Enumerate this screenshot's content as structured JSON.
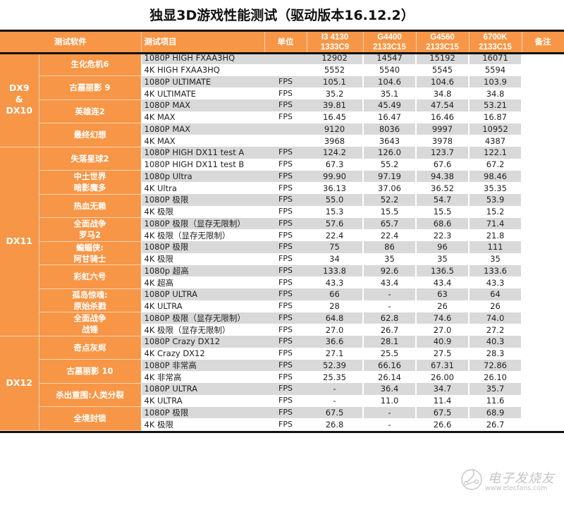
{
  "title": "独显3D游戏性能测试（驱动版本16.12.2）",
  "header": {
    "software": "测试软件",
    "test_item": "测试项目",
    "unit": "单位",
    "cpus": [
      {
        "line1": "I3 4130",
        "line2": "1333C9"
      },
      {
        "line1": "G4400",
        "line2": "2133C15"
      },
      {
        "line1": "G4560",
        "line2": "2133C15"
      },
      {
        "line1": "6700K",
        "line2": "2133C15"
      }
    ],
    "note": "备注"
  },
  "groups": [
    {
      "label_lines": [
        "DX9",
        "&",
        "DX10"
      ]
    },
    {
      "label_lines": [
        "DX11"
      ]
    },
    {
      "label_lines": [
        "DX12"
      ]
    }
  ],
  "games": [
    {
      "lines": [
        "生化危机6"
      ]
    },
    {
      "lines": [
        "古墓丽影 9"
      ]
    },
    {
      "lines": [
        "英雄连2"
      ]
    },
    {
      "lines": [
        "最终幻想"
      ]
    },
    {
      "lines": [
        "失落星球2"
      ]
    },
    {
      "lines": [
        "中土世界",
        "暗影魔多"
      ]
    },
    {
      "lines": [
        "热血无赖"
      ]
    },
    {
      "lines": [
        "全面战争",
        "罗马2"
      ]
    },
    {
      "lines": [
        "蝙蝠侠:",
        "阿甘骑士"
      ]
    },
    {
      "lines": [
        "彩虹六号"
      ]
    },
    {
      "lines": [
        "孤岛惊魂:",
        "原始杀戮"
      ]
    },
    {
      "lines": [
        "全面战争",
        "战锤"
      ]
    },
    {
      "lines": [
        "奇点灰烬"
      ]
    },
    {
      "lines": [
        "古墓丽影 10"
      ]
    },
    {
      "lines": [
        "杀出重围:人类分裂"
      ]
    },
    {
      "lines": [
        "全境封锁"
      ]
    }
  ],
  "rows": [
    {
      "test": "1080P HIGH FXAA3HQ",
      "unit": "",
      "values": [
        "12902",
        "14547",
        "15192",
        "16071"
      ]
    },
    {
      "test": "4K HIGH FXAA3HQ",
      "unit": "",
      "values": [
        "5552",
        "5540",
        "5545",
        "5594"
      ]
    },
    {
      "test": "1080P ULTIMATE",
      "unit": "FPS",
      "values": [
        "105.1",
        "104.6",
        "104.6",
        "103.9"
      ]
    },
    {
      "test": "4K ULTIMATE",
      "unit": "FPS",
      "values": [
        "35.2",
        "35.1",
        "34.8",
        "34.8"
      ]
    },
    {
      "test": "1080P MAX",
      "unit": "FPS",
      "values": [
        "39.81",
        "45.49",
        "47.54",
        "53.21"
      ]
    },
    {
      "test": "4K MAX",
      "unit": "FPS",
      "values": [
        "16.45",
        "16.47",
        "16.46",
        "16.87"
      ]
    },
    {
      "test": "1080P MAX",
      "unit": "",
      "values": [
        "9120",
        "8036",
        "9997",
        "10952"
      ]
    },
    {
      "test": "4K MAX",
      "unit": "",
      "values": [
        "3968",
        "3643",
        "3978",
        "4387"
      ]
    },
    {
      "test": "1080P HIGH DX11 test A",
      "unit": "FPS",
      "values": [
        "124.2",
        "126.0",
        "123.7",
        "122.1"
      ]
    },
    {
      "test": "1080P HIGH DX11 test B",
      "unit": "FPS",
      "values": [
        "67.3",
        "55.2",
        "67.6",
        "67.2"
      ]
    },
    {
      "test": "1080p Ultra",
      "unit": "FPS",
      "values": [
        "99.90",
        "97.19",
        "94.38",
        "98.46"
      ]
    },
    {
      "test": "4K Ultra",
      "unit": "FPS",
      "values": [
        "36.13",
        "37.06",
        "36.52",
        "35.35"
      ]
    },
    {
      "test": "1080P 极限",
      "unit": "FPS",
      "values": [
        "55.0",
        "52.2",
        "54.7",
        "53.9"
      ]
    },
    {
      "test": "4K 极限",
      "unit": "FPS",
      "values": [
        "15.3",
        "15.5",
        "15.5",
        "15.2"
      ]
    },
    {
      "test": "1080P 极限（显存无限制）",
      "unit": "FPS",
      "values": [
        "57.6",
        "65.7",
        "68.6",
        "71.4"
      ]
    },
    {
      "test": "4K 极限（显存无限制）",
      "unit": "FPS",
      "values": [
        "22.4",
        "22.4",
        "22.3",
        "21.8"
      ]
    },
    {
      "test": "1080P 极限",
      "unit": "FPS",
      "values": [
        "75",
        "86",
        "96",
        "111"
      ]
    },
    {
      "test": "4K 极限",
      "unit": "FPS",
      "values": [
        "34",
        "35",
        "35",
        "35"
      ]
    },
    {
      "test": "1080p 超高",
      "unit": "FPS",
      "values": [
        "133.8",
        "92.6",
        "136.5",
        "133.6"
      ]
    },
    {
      "test": "4K 超高",
      "unit": "FPS",
      "values": [
        "43.3",
        "43.4",
        "43.4",
        "43.3"
      ]
    },
    {
      "test": "1080P ULTRA",
      "unit": "FPS",
      "values": [
        "66",
        "-",
        "63",
        "64"
      ]
    },
    {
      "test": "4K ULTRA",
      "unit": "FPS",
      "values": [
        "28",
        "-",
        "26",
        "26"
      ]
    },
    {
      "test": "1080P 极限（显存无限制）",
      "unit": "FPS",
      "values": [
        "64.8",
        "62.8",
        "74.6",
        "74.0"
      ]
    },
    {
      "test": "4K 极限（显存无限制）",
      "unit": "FPS",
      "values": [
        "27.0",
        "26.7",
        "27.0",
        "27.2"
      ]
    },
    {
      "test": "1080P Crazy DX12",
      "unit": "FPS",
      "values": [
        "36.6",
        "28.1",
        "40.9",
        "40.3"
      ]
    },
    {
      "test": "4K Crazy DX12",
      "unit": "FPS",
      "values": [
        "27.1",
        "25.5",
        "27.5",
        "28.3"
      ]
    },
    {
      "test": "1080P 非常高",
      "unit": "FPS",
      "values": [
        "52.39",
        "66.16",
        "67.31",
        "72.86"
      ]
    },
    {
      "test": "4K 非常高",
      "unit": "FPS",
      "values": [
        "25.35",
        "26.14",
        "26.00",
        "26.10"
      ]
    },
    {
      "test": "1080P ULTRA",
      "unit": "FPS",
      "values": [
        "-",
        "36.4",
        "34.7",
        "35.7"
      ]
    },
    {
      "test": "4K ULTRA",
      "unit": "FPS",
      "values": [
        "-",
        "11.0",
        "11.4",
        "11.6"
      ]
    },
    {
      "test": "1080P 极限",
      "unit": "FPS",
      "values": [
        "67.5",
        "-",
        "67.5",
        "68.9"
      ]
    },
    {
      "test": "4K 极限",
      "unit": "FPS",
      "values": [
        "26.8",
        "-",
        "26.6",
        "26.7"
      ]
    }
  ],
  "colors": {
    "header_orange": "#f79646",
    "row_shade": "#d9d9d9",
    "rule_black": "#111111"
  },
  "watermark": {
    "brand": "电子发烧友",
    "url": "www.elecfans.com",
    "icon": "circuit-logo-icon"
  }
}
